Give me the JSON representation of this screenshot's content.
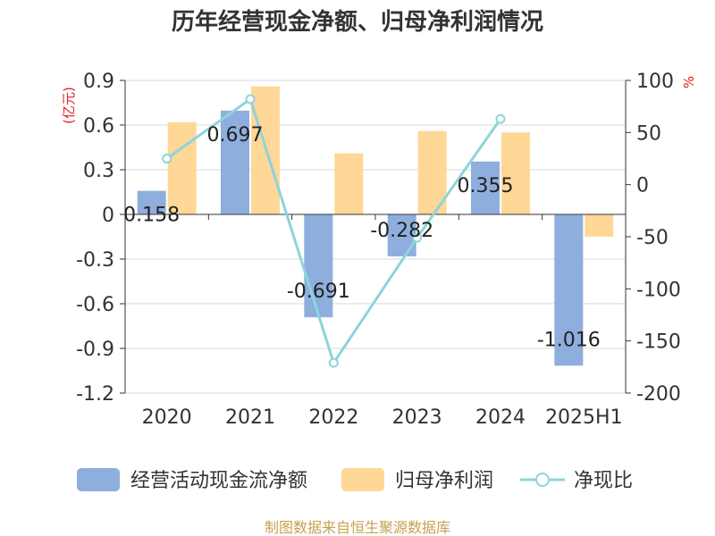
{
  "chart_data": {
    "type": "bar",
    "title": "历年经营现金净额、归母净利润情况",
    "categories": [
      "2020",
      "2021",
      "2022",
      "2023",
      "2024",
      "2025H1"
    ],
    "series": [
      {
        "name": "经营活动现金流净额",
        "type": "bar",
        "axis": "left",
        "values": [
          0.158,
          0.697,
          -0.691,
          -0.282,
          0.355,
          -1.016
        ],
        "labels": [
          "0.158",
          "0.697",
          "-0.691",
          "-0.282",
          "0.355",
          "-1.016"
        ]
      },
      {
        "name": "归母净利润",
        "type": "bar",
        "axis": "left",
        "values": [
          0.62,
          0.86,
          0.41,
          0.56,
          0.55,
          -0.15
        ]
      },
      {
        "name": "净现比",
        "type": "line",
        "axis": "right",
        "values": [
          25,
          82,
          -171,
          -51,
          63,
          null
        ]
      }
    ],
    "y_left": {
      "unit": "(亿元)",
      "min": -1.2,
      "max": 0.9,
      "ticks": [
        "0.9",
        "0.6",
        "0.3",
        "0",
        "-0.3",
        "-0.6",
        "-0.9",
        "-1.2"
      ]
    },
    "y_right": {
      "unit": "%",
      "min": -200,
      "max": 100,
      "ticks": [
        "100",
        "50",
        "0",
        "-50",
        "-100",
        "-150",
        "-200"
      ]
    },
    "grid": true,
    "legend_position": "bottom"
  },
  "colors": {
    "bar1": "#8eaedd",
    "bar2": "#ffd796",
    "line": "#8dd4dc",
    "unit": "#e02020",
    "source": "#c8a050",
    "axis": "#333333",
    "grid": "#d9d9d9"
  },
  "source": "制图数据来自恒生聚源数据库"
}
